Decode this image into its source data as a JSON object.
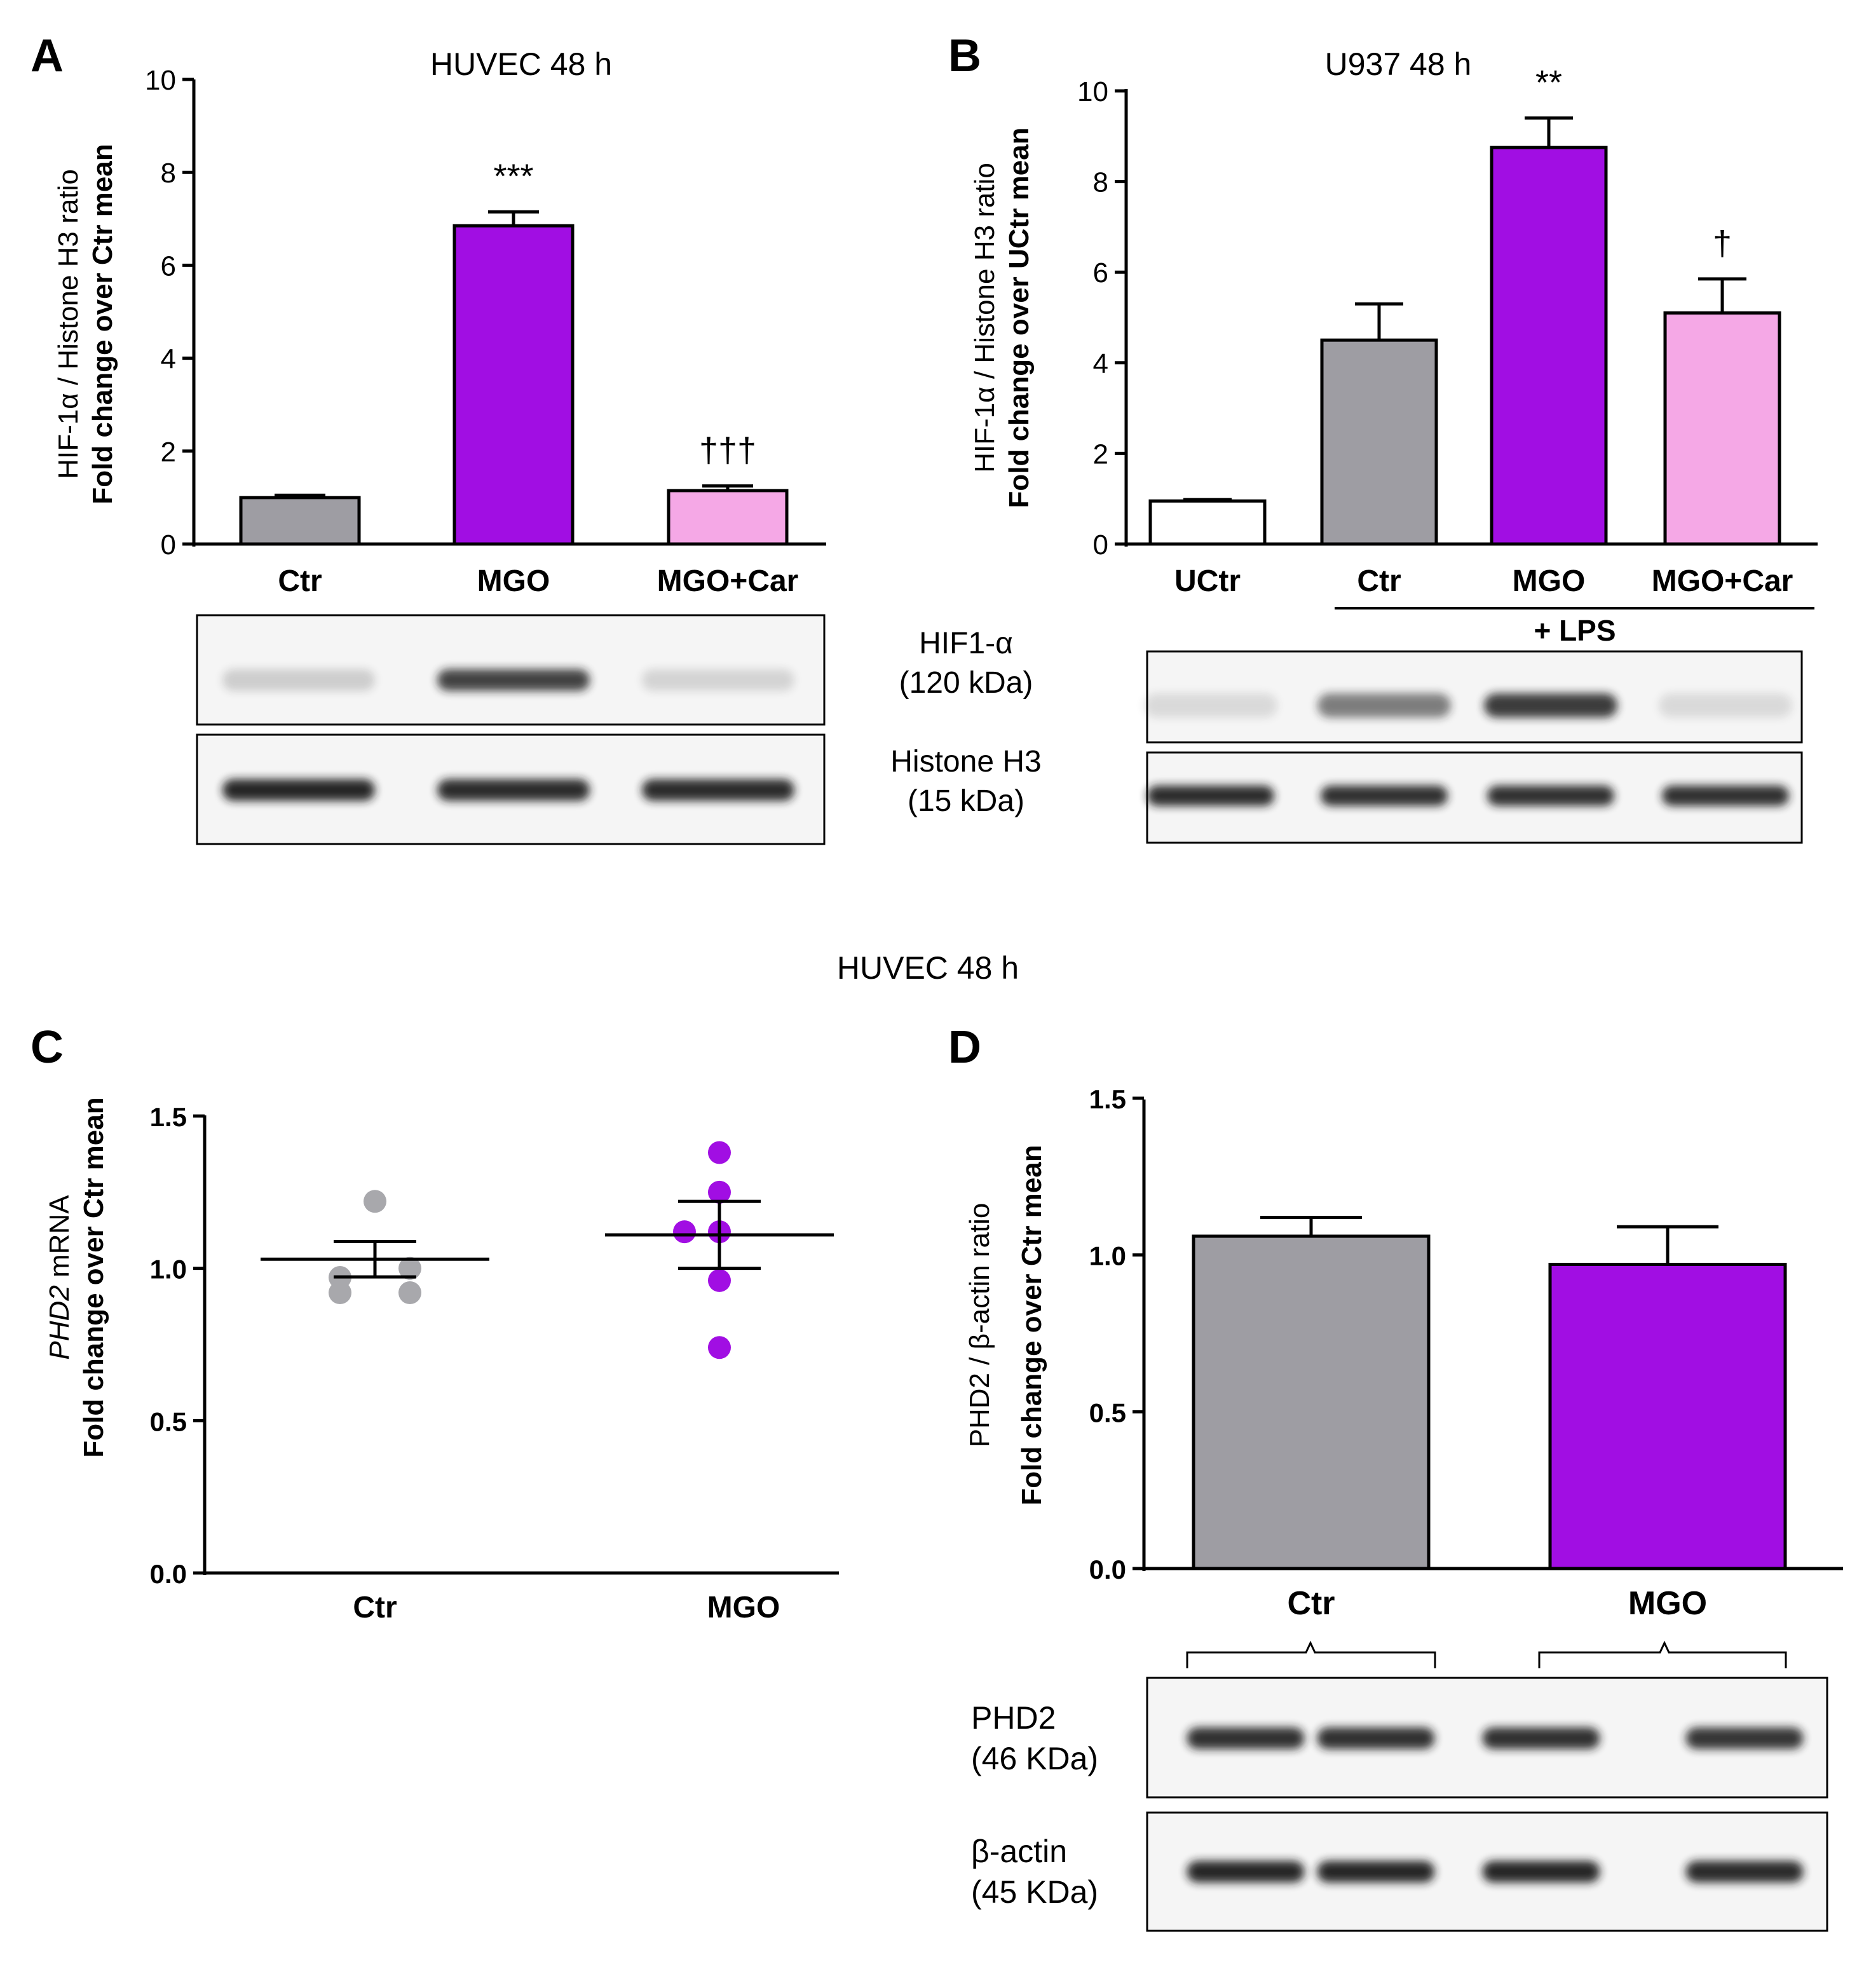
{
  "colors": {
    "axis": "#000000",
    "blot_bg": "#f5f5f5",
    "blot_band": "#1a1a1a",
    "white": "#ffffff"
  },
  "chart_data": [
    {
      "panel": "A",
      "type": "bar",
      "title": "HUVEC 48 h",
      "ylabel_line1": "HIF-1α / Histone H3 ratio",
      "ylabel_line2": "Fold change over Ctr mean",
      "ylim": [
        0,
        10
      ],
      "yticks": [
        0,
        2,
        4,
        6,
        8,
        10
      ],
      "categories": [
        "Ctr",
        "MGO",
        "MGO+Car"
      ],
      "values": [
        1.0,
        6.85,
        1.15
      ],
      "errors": [
        0.05,
        0.3,
        0.1
      ],
      "colors": [
        "#9e9da3",
        "#a10ee3",
        "#f5a8e6"
      ],
      "annotations": [
        "",
        "***",
        "†††"
      ],
      "blots": [
        {
          "label": "HIF1-α",
          "size": "(120 kDa)",
          "intensities": [
            0.18,
            0.82,
            0.15
          ]
        },
        {
          "label": "Histone H3",
          "size": "(15 kDa)",
          "intensities": [
            0.95,
            0.92,
            0.92
          ]
        }
      ]
    },
    {
      "panel": "B",
      "type": "bar",
      "title": "U937 48 h",
      "ylabel_line1": "HIF-1α / Histone H3 ratio",
      "ylabel_line2": "Fold change over UCtr mean",
      "ylim": [
        0,
        10
      ],
      "yticks": [
        0,
        2,
        4,
        6,
        8,
        10
      ],
      "categories": [
        "UCtr",
        "Ctr",
        "MGO",
        "MGO+Car"
      ],
      "values": [
        0.95,
        4.5,
        8.75,
        5.1
      ],
      "errors": [
        0.03,
        0.8,
        0.65,
        0.75
      ],
      "colors": [
        "#ffffff",
        "#9e9da3",
        "#a10ee3",
        "#f5a8e6"
      ],
      "annotations": [
        "",
        "",
        "**",
        "†"
      ],
      "group_label": "+ LPS",
      "blots": [
        {
          "intensities": [
            0.12,
            0.55,
            0.85,
            0.12
          ]
        },
        {
          "intensities": [
            0.92,
            0.9,
            0.9,
            0.9
          ]
        }
      ]
    },
    {
      "panel": "C",
      "type": "scatter",
      "title": "HUVEC 48 h",
      "ylabel_italic": "PHD2",
      "ylabel_line1": " mRNA",
      "ylabel_line2": "Fold change over Ctr mean",
      "ylim": [
        0,
        1.5
      ],
      "yticks": [
        "0.0",
        "0.5",
        "1.0",
        "1.5"
      ],
      "categories": [
        "Ctr",
        "MGO"
      ],
      "series": [
        {
          "values": [
            1.22,
            0.97,
            1.0,
            0.92,
            0.92
          ],
          "mean": 1.03,
          "sem": 0.058,
          "color": "#a8a8ac"
        },
        {
          "values": [
            1.38,
            1.25,
            1.12,
            1.12,
            0.96,
            0.74
          ],
          "mean": 1.11,
          "sem": 0.11,
          "color": "#a10ee3"
        }
      ]
    },
    {
      "panel": "D",
      "type": "bar",
      "ylabel_line1": "PHD2 / β-actin  ratio",
      "ylabel_line2": "Fold change over Ctr mean",
      "ylim": [
        0,
        1.5
      ],
      "yticks": [
        "0.0",
        "0.5",
        "1.0",
        "1.5"
      ],
      "categories": [
        "Ctr",
        "MGO"
      ],
      "values": [
        1.06,
        0.97
      ],
      "errors": [
        0.06,
        0.12
      ],
      "colors": [
        "#9e9da3",
        "#a10ee3"
      ],
      "blots": [
        {
          "label": "PHD2",
          "size": "(46 KDa)",
          "intensities": [
            0.9,
            0.9,
            0.9,
            0.88
          ]
        },
        {
          "label": "β-actin",
          "size": "(45 KDa)",
          "intensities": [
            0.95,
            0.95,
            0.95,
            0.93
          ]
        }
      ]
    }
  ]
}
